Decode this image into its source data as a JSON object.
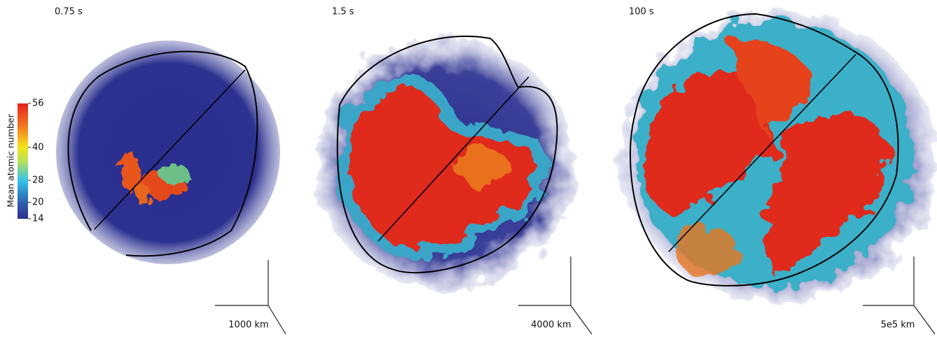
{
  "panels": [
    {
      "time": "0.75 s",
      "scale_label": "1000 km"
    },
    {
      "time": "1.5 s",
      "scale_label": "4000 km"
    },
    {
      "time": "100 s",
      "scale_label": "5e5 km"
    }
  ],
  "colorbar": {
    "label": "Mean atomic number",
    "lim": [
      14,
      56
    ],
    "ticks": [
      56,
      40,
      28,
      20,
      14
    ]
  }
}
